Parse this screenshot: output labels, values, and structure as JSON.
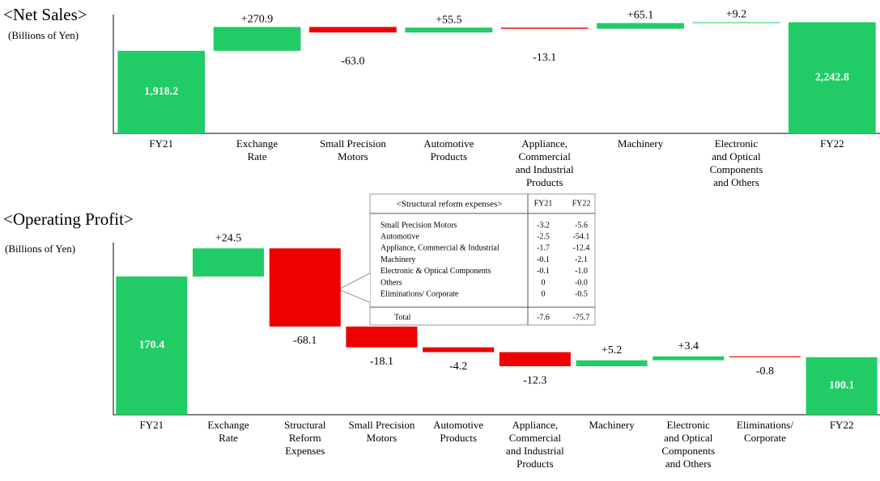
{
  "chart_data": [
    {
      "type": "waterfall",
      "title": "<Net Sales>",
      "y_label": "(Billions of Yen)",
      "categories": [
        "FY21",
        "Exchange\nRate",
        "Small Precision\nMotors",
        "Automotive\nProducts",
        "Appliance,\nCommercial\nand Industrial\nProducts",
        "Machinery",
        "Electronic\nand Optical\nComponents\nand Others",
        "FY22"
      ],
      "measure": [
        "total",
        "relative",
        "relative",
        "relative",
        "relative",
        "relative",
        "relative",
        "total"
      ],
      "values": [
        1918.2,
        270.9,
        -63.0,
        55.5,
        -13.1,
        65.1,
        9.2,
        2242.8
      ],
      "value_labels": [
        "1,918.2",
        "+270.9",
        "-63.0",
        "+55.5",
        "-13.1",
        "+65.1",
        "+9.2",
        "2,242.8"
      ],
      "increase_color": "#21cc67",
      "decrease_color": "#ee0000",
      "total_color": "#21cc67",
      "ylim": [
        980,
        2330
      ]
    },
    {
      "type": "waterfall",
      "title": "<Operating Profit>",
      "y_label": "(Billions of Yen)",
      "categories": [
        "FY21",
        "Exchange\nRate",
        "Structural\nReform\nExpenses",
        "Small Precision\nMotors",
        "Automotive\nProducts",
        "Appliance,\nCommercial\nand Industrial\nProducts",
        "Machinery",
        "Electronic\nand Optical\nComponents\nand Others",
        "Eliminations/\nCorporate",
        "FY22"
      ],
      "measure": [
        "total",
        "relative",
        "relative",
        "relative",
        "relative",
        "relative",
        "relative",
        "relative",
        "relative",
        "total"
      ],
      "values": [
        170.4,
        24.5,
        -68.1,
        -18.1,
        -4.2,
        -12.3,
        5.2,
        3.4,
        -0.8,
        100.1
      ],
      "value_labels": [
        "170.4",
        "+24.5",
        "-68.1",
        "-18.1",
        "-4.2",
        "-12.3",
        "+5.2",
        "+3.4",
        "-0.8",
        "100.1"
      ],
      "increase_color": "#21cc67",
      "decrease_color": "#ee0000",
      "total_color": "#21cc67",
      "ylim": [
        50,
        200
      ],
      "table": {
        "title": "<Structural reform expenses>",
        "columns": [
          "FY21",
          "FY22"
        ],
        "rows": [
          [
            "Small Precision Motors",
            "-3.2",
            "-5.6"
          ],
          [
            "Automotive",
            "-2.5",
            "-54.1"
          ],
          [
            "Appliance, Commercial & Industrial",
            "-1.7",
            "-12.4"
          ],
          [
            "Machinery",
            "-0.1",
            "-2.1"
          ],
          [
            "Electronic & Optical Components",
            "-0.1",
            "-1.0"
          ],
          [
            "Others",
            "0",
            "-0.0"
          ],
          [
            "Eliminations/ Corporate",
            "0",
            "-0.5"
          ]
        ],
        "total": [
          "Total",
          "-7.6",
          "-75.7"
        ]
      }
    }
  ]
}
